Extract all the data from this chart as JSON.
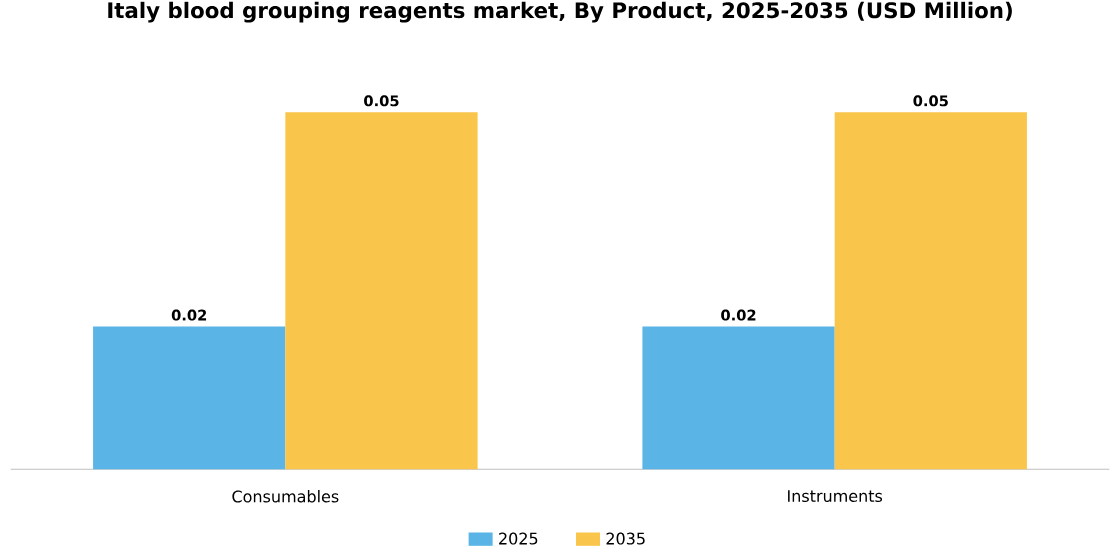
{
  "chart_data": {
    "type": "bar",
    "title": "Italy blood grouping reagents market, By Product, 2025-2035 (USD Million)",
    "categories": [
      "Consumables",
      "Instruments"
    ],
    "series": [
      {
        "name": "2025",
        "color": "#5ab4e5",
        "values": [
          0.02,
          0.02
        ]
      },
      {
        "name": "2035",
        "color": "#f9c54b",
        "values": [
          0.05,
          0.05
        ]
      }
    ],
    "data_labels": true,
    "legend": "bottom"
  }
}
